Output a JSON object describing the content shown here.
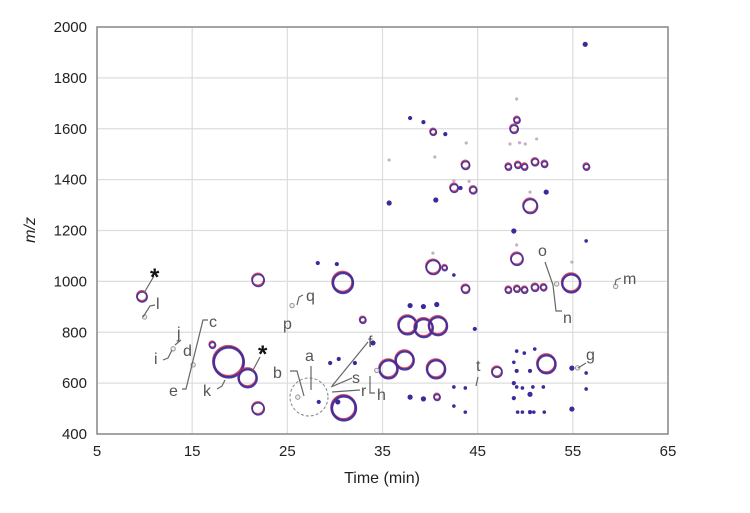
{
  "chart_data": {
    "type": "scatter",
    "subtype": "bubble",
    "xlabel": "Time (min)",
    "ylabel": "m/z",
    "xlim": [
      5,
      65
    ],
    "ylim": [
      400,
      2000
    ],
    "xticks": [
      "5",
      "15",
      "25",
      "35",
      "45",
      "55",
      "65"
    ],
    "yticks": [
      "400",
      "600",
      "800",
      "1000",
      "1200",
      "1400",
      "1600",
      "1800",
      "2000"
    ],
    "grid": true,
    "colors": {
      "series_a": "#3a2a9c",
      "series_b": "#d0304a",
      "annotation": "#999999"
    },
    "bubbles": [
      [
        9.7,
        940,
        5
      ],
      [
        21.9,
        1005,
        6
      ],
      [
        21.9,
        500,
        6
      ],
      [
        18.8,
        683,
        15
      ],
      [
        20.8,
        620,
        9
      ],
      [
        17.1,
        750,
        3
      ],
      [
        30.8,
        995,
        10
      ],
      [
        30.9,
        502,
        12
      ],
      [
        32.9,
        848,
        3
      ],
      [
        28.2,
        1072,
        1.5
      ],
      [
        30.2,
        1068,
        1.5
      ],
      [
        29.5,
        679,
        1.5
      ],
      [
        30.4,
        695,
        1.5
      ],
      [
        32.1,
        679,
        1.5
      ],
      [
        34.0,
        758,
        2
      ],
      [
        28.3,
        526,
        1.5
      ],
      [
        30.3,
        526,
        2
      ],
      [
        56.3,
        1932,
        2
      ],
      [
        37.9,
        1642,
        1.5
      ],
      [
        39.3,
        1626,
        1.5
      ],
      [
        40.3,
        1587,
        3
      ],
      [
        41.6,
        1579,
        1.5
      ],
      [
        49.1,
        1634,
        3
      ],
      [
        48.8,
        1599,
        4
      ],
      [
        43.7,
        1457,
        4
      ],
      [
        48.2,
        1450,
        3
      ],
      [
        49.2,
        1457,
        3
      ],
      [
        49.9,
        1450,
        3
      ],
      [
        51.0,
        1469,
        3.5
      ],
      [
        52.0,
        1461,
        3
      ],
      [
        56.4,
        1450,
        3
      ],
      [
        42.5,
        1367,
        4
      ],
      [
        43.2,
        1367,
        1.5
      ],
      [
        44.5,
        1359,
        3.5
      ],
      [
        35.7,
        1308,
        2
      ],
      [
        40.6,
        1320,
        2
      ],
      [
        50.5,
        1296,
        7
      ],
      [
        52.2,
        1351,
        2
      ],
      [
        48.8,
        1198,
        2
      ],
      [
        49.1,
        1088,
        6
      ],
      [
        56.4,
        1159,
        1.2
      ],
      [
        40.3,
        1056,
        7
      ],
      [
        41.5,
        1053,
        2.5
      ],
      [
        42.5,
        1025,
        1.2
      ],
      [
        43.7,
        970,
        4
      ],
      [
        48.2,
        966,
        3
      ],
      [
        49.1,
        970,
        3
      ],
      [
        49.9,
        966,
        3
      ],
      [
        51.0,
        976,
        3.5
      ],
      [
        51.9,
        976,
        3
      ],
      [
        54.8,
        993,
        9
      ],
      [
        37.6,
        828,
        9
      ],
      [
        39.3,
        817,
        9
      ],
      [
        40.8,
        825,
        9
      ],
      [
        44.7,
        813,
        1.5
      ],
      [
        35.6,
        655,
        9
      ],
      [
        37.3,
        690,
        9
      ],
      [
        40.6,
        655,
        9
      ],
      [
        47.0,
        644,
        5
      ],
      [
        52.2,
        675,
        9
      ],
      [
        54.9,
        659,
        2
      ],
      [
        37.9,
        545,
        2
      ],
      [
        39.3,
        538,
        2
      ],
      [
        40.7,
        545,
        3
      ],
      [
        49.1,
        726,
        1.2
      ],
      [
        49.9,
        718,
        1.2
      ],
      [
        51.0,
        734,
        1.2
      ],
      [
        48.8,
        682,
        1.2
      ],
      [
        49.1,
        648,
        1.5
      ],
      [
        50.5,
        648,
        1.5
      ],
      [
        48.8,
        600,
        1.5
      ],
      [
        49.1,
        585,
        1.2
      ],
      [
        49.7,
        581,
        1.2
      ],
      [
        50.8,
        585,
        1.2
      ],
      [
        51.9,
        585,
        1.2
      ],
      [
        48.8,
        541,
        1.5
      ],
      [
        50.5,
        556,
        2
      ],
      [
        49.2,
        486,
        1.2
      ],
      [
        49.7,
        486,
        1.2
      ],
      [
        50.5,
        486,
        1.5
      ],
      [
        50.9,
        486,
        1.2
      ],
      [
        52.0,
        486,
        1.2
      ],
      [
        42.5,
        585,
        1.2
      ],
      [
        43.7,
        581,
        1.2
      ],
      [
        42.5,
        510,
        1.2
      ],
      [
        43.7,
        486,
        1.2
      ],
      [
        54.9,
        498,
        2
      ],
      [
        56.4,
        640,
        1.2
      ],
      [
        56.4,
        577,
        1.2
      ],
      [
        37.9,
        905,
        2
      ],
      [
        39.3,
        901,
        2
      ],
      [
        40.7,
        909,
        2
      ]
    ],
    "faint_points": [
      [
        49.1,
        1717
      ],
      [
        43.8,
        1544
      ],
      [
        35.7,
        1477
      ],
      [
        40.5,
        1489
      ],
      [
        48.4,
        1540
      ],
      [
        49.4,
        1545
      ],
      [
        50.0,
        1540
      ],
      [
        51.2,
        1560
      ],
      [
        42.5,
        1395
      ],
      [
        44.1,
        1393
      ],
      [
        50.5,
        1351
      ],
      [
        49.1,
        1143
      ],
      [
        40.3,
        1111
      ],
      [
        54.9,
        1076
      ]
    ],
    "annotation_points": [
      [
        10.0,
        860
      ],
      [
        13.0,
        735
      ],
      [
        15.1,
        672
      ],
      [
        26.1,
        545
      ],
      [
        25.5,
        905
      ],
      [
        59.5,
        980
      ],
      [
        55.5,
        660
      ],
      [
        53.3,
        990
      ],
      [
        34.4,
        650
      ]
    ],
    "annotations": {
      "a": "a",
      "b": "b",
      "c": "c",
      "d": "d",
      "e": "e",
      "f": "f",
      "g": "g",
      "h": "h",
      "i": "i",
      "j": "j",
      "k": "k",
      "l": "l",
      "m": "m",
      "n": "n",
      "o": "o",
      "p": "p",
      "q": "q",
      "r": "r",
      "s": "s",
      "t": "t",
      "star1": "*",
      "star2": "*"
    }
  }
}
